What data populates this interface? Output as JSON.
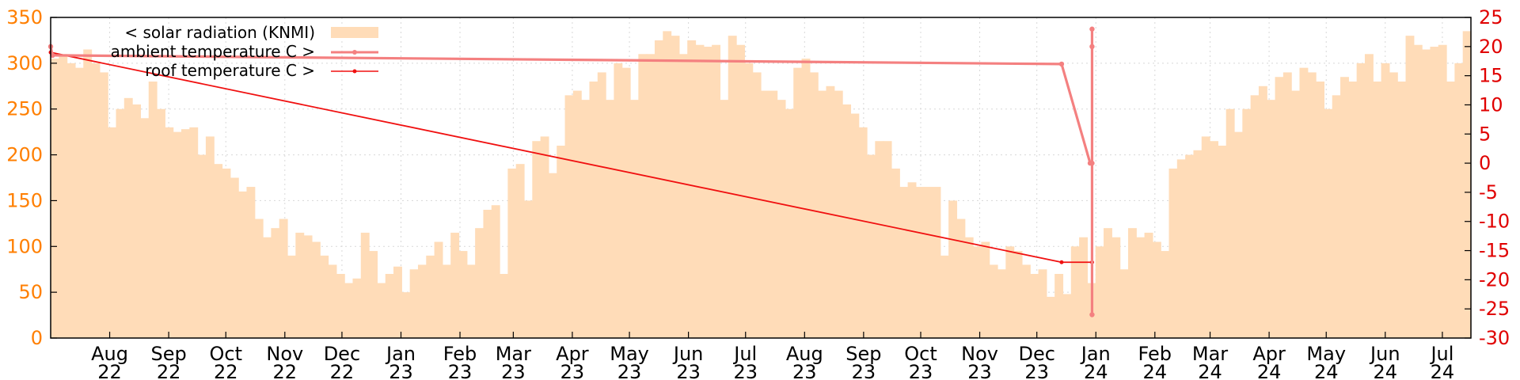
{
  "chart_data": {
    "type": "bar",
    "title": "",
    "grid": true,
    "legend_position": "top-left",
    "colors": {
      "radiation": "#ffdcb8",
      "ambient": "#f48080",
      "roof": "#f01010",
      "left_axis": "#ff7f00",
      "right_axis": "#e00000"
    },
    "x_ticks": [
      {
        "month": "Aug",
        "year": "22"
      },
      {
        "month": "Sep",
        "year": "22"
      },
      {
        "month": "Oct",
        "year": "22"
      },
      {
        "month": "Nov",
        "year": "22"
      },
      {
        "month": "Dec",
        "year": "22"
      },
      {
        "month": "Jan",
        "year": "23"
      },
      {
        "month": "Feb",
        "year": "23"
      },
      {
        "month": "Mar",
        "year": "23"
      },
      {
        "month": "Apr",
        "year": "23"
      },
      {
        "month": "May",
        "year": "23"
      },
      {
        "month": "Jun",
        "year": "23"
      },
      {
        "month": "Jul",
        "year": "23"
      },
      {
        "month": "Aug",
        "year": "23"
      },
      {
        "month": "Sep",
        "year": "23"
      },
      {
        "month": "Oct",
        "year": "23"
      },
      {
        "month": "Nov",
        "year": "23"
      },
      {
        "month": "Dec",
        "year": "23"
      },
      {
        "month": "Jan",
        "year": "24"
      },
      {
        "month": "Feb",
        "year": "24"
      },
      {
        "month": "Mar",
        "year": "24"
      },
      {
        "month": "Apr",
        "year": "24"
      },
      {
        "month": "May",
        "year": "24"
      },
      {
        "month": "Jun",
        "year": "24"
      },
      {
        "month": "Jul",
        "year": "24"
      }
    ],
    "y_left": {
      "ticks": [
        0,
        50,
        100,
        150,
        200,
        250,
        300,
        350
      ],
      "range": [
        0,
        350
      ]
    },
    "y_right": {
      "ticks": [
        -30,
        -25,
        -20,
        -15,
        -10,
        -5,
        0,
        5,
        10,
        15,
        20,
        25
      ],
      "range": [
        -30,
        25
      ]
    },
    "series": [
      {
        "name": "< solar radiation (KNMI)",
        "axis": "left",
        "kind": "bars",
        "weekly_values": [
          305,
          310,
          300,
          295,
          315,
          300,
          290,
          230,
          250,
          262,
          255,
          240,
          280,
          250,
          230,
          225,
          228,
          230,
          200,
          220,
          190,
          185,
          175,
          160,
          165,
          130,
          110,
          120,
          130,
          90,
          115,
          112,
          105,
          90,
          80,
          70,
          60,
          65,
          115,
          95,
          60,
          70,
          78,
          50,
          75,
          80,
          90,
          105,
          80,
          115,
          95,
          80,
          120,
          140,
          145,
          70,
          185,
          190,
          150,
          215,
          220,
          180,
          210,
          265,
          270,
          260,
          280,
          290,
          260,
          300,
          295,
          260,
          310,
          310,
          325,
          335,
          330,
          310,
          325,
          320,
          318,
          320,
          260,
          330,
          320,
          300,
          290,
          270,
          270,
          260,
          250,
          295,
          305,
          290,
          270,
          275,
          270,
          255,
          245,
          230,
          200,
          215,
          215,
          185,
          165,
          170,
          165,
          165,
          165,
          90,
          150,
          130,
          110,
          100,
          105,
          80,
          75,
          100,
          95,
          80,
          70,
          75,
          45,
          70,
          48,
          100,
          110,
          60,
          100,
          120,
          110,
          75,
          120,
          110,
          115,
          105,
          95,
          185,
          195,
          200,
          205,
          220,
          215,
          210,
          250,
          225,
          250,
          265,
          275,
          260,
          285,
          290,
          270,
          295,
          290,
          280,
          250,
          265,
          285,
          280,
          300,
          310,
          280,
          300,
          290,
          280,
          330,
          320,
          315,
          318,
          320,
          280,
          300,
          335
        ]
      },
      {
        "name": "ambient temperature C >",
        "axis": "right",
        "kind": "line",
        "points": [
          [
            "2022-07-15",
            20
          ],
          [
            "2022-07-16",
            18.5
          ],
          [
            "2023-12-28",
            17
          ],
          [
            "2024-01-12",
            0
          ],
          [
            "2024-01-13",
            0
          ],
          [
            "2024-01-13",
            23
          ],
          [
            "2024-01-13",
            20
          ],
          [
            "2024-01-13",
            -26
          ]
        ]
      },
      {
        "name": "roof temperature C >",
        "axis": "right",
        "kind": "line",
        "points": [
          [
            "2022-07-15",
            19
          ],
          [
            "2023-12-28",
            -17
          ],
          [
            "2024-01-13",
            -17
          ]
        ]
      }
    ]
  }
}
